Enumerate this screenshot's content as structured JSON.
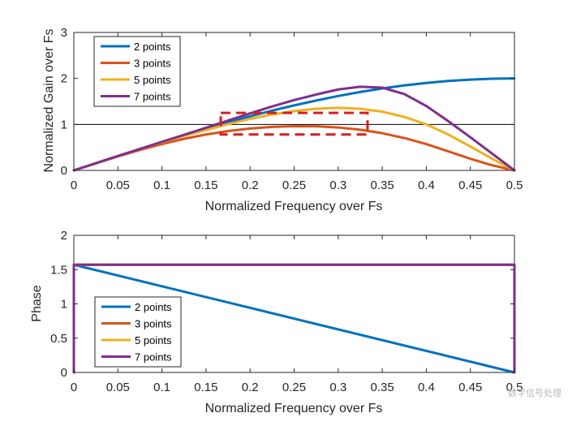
{
  "chart_data": [
    {
      "type": "line",
      "xlabel": "Normalized Frequency over Fs",
      "ylabel": "Normalized Gain over Fs",
      "xlim": [
        0,
        0.5
      ],
      "ylim": [
        0,
        3
      ],
      "xticks": [
        "0",
        "0.05",
        "0.1",
        "0.15",
        "0.2",
        "0.25",
        "0.3",
        "0.35",
        "0.4",
        "0.45",
        "0.5"
      ],
      "yticks": [
        "0",
        "1",
        "2",
        "3"
      ],
      "grid": false,
      "legend_position": "top-left",
      "legend": [
        "2 points",
        "3 points",
        "5 points",
        "7 points"
      ],
      "x": [
        0,
        0.025,
        0.05,
        0.075,
        0.1,
        0.125,
        0.15,
        0.175,
        0.2,
        0.225,
        0.25,
        0.275,
        0.3,
        0.325,
        0.35,
        0.375,
        0.4,
        0.425,
        0.45,
        0.475,
        0.5
      ],
      "series": [
        {
          "name": "2 points",
          "color": "#0072BD",
          "values": [
            0,
            0.156,
            0.313,
            0.465,
            0.618,
            0.765,
            0.908,
            1.045,
            1.176,
            1.3,
            1.414,
            1.52,
            1.618,
            1.705,
            1.782,
            1.848,
            1.902,
            1.945,
            1.975,
            1.994,
            2.0
          ]
        },
        {
          "name": "3 points",
          "color": "#D95319",
          "values": [
            0,
            0.154,
            0.304,
            0.445,
            0.573,
            0.686,
            0.781,
            0.856,
            0.911,
            0.946,
            0.962,
            0.959,
            0.934,
            0.885,
            0.809,
            0.704,
            0.572,
            0.414,
            0.252,
            0.11,
            0
          ]
        },
        {
          "name": "5 points",
          "color": "#EDB120",
          "values": [
            0,
            0.156,
            0.312,
            0.466,
            0.614,
            0.752,
            0.878,
            1.005,
            1.12,
            1.215,
            1.29,
            1.342,
            1.362,
            1.342,
            1.277,
            1.163,
            1.0,
            0.78,
            0.52,
            0.25,
            0
          ]
        },
        {
          "name": "7 points",
          "color": "#7E2F8E",
          "values": [
            0,
            0.156,
            0.313,
            0.467,
            0.622,
            0.774,
            0.928,
            1.085,
            1.24,
            1.39,
            1.53,
            1.65,
            1.76,
            1.82,
            1.8,
            1.66,
            1.4,
            1.07,
            0.72,
            0.36,
            0
          ]
        }
      ],
      "annotations": {
        "reference_line": {
          "y": 1.0,
          "color": "#000000"
        },
        "dashed_box": {
          "x0": 0.1667,
          "x1": 0.3333,
          "y0": 0.78,
          "y1": 1.25,
          "color": "#D42020"
        }
      }
    },
    {
      "type": "line",
      "xlabel": "Normalized Frequency over Fs",
      "ylabel": "Phase",
      "xlim": [
        0,
        0.5
      ],
      "ylim": [
        0,
        2
      ],
      "xticks": [
        "0",
        "0.05",
        "0.1",
        "0.15",
        "0.2",
        "0.25",
        "0.3",
        "0.35",
        "0.4",
        "0.45",
        "0.5"
      ],
      "yticks": [
        "0",
        "0.5",
        "1",
        "1.5",
        "2"
      ],
      "grid": false,
      "legend_position": "bottom-left",
      "legend": [
        "2 points",
        "3 points",
        "5 points",
        "7 points"
      ],
      "series": [
        {
          "name": "2 points",
          "color": "#0072BD",
          "x": [
            0,
            0.5
          ],
          "values": [
            1.5708,
            0
          ]
        },
        {
          "name": "3 points",
          "color": "#D95319",
          "x": [
            0,
            0,
            0.5,
            0.5
          ],
          "values": [
            0,
            1.5708,
            1.5708,
            0
          ]
        },
        {
          "name": "5 points",
          "color": "#EDB120",
          "x": [
            0,
            0,
            0.5,
            0.5
          ],
          "values": [
            0,
            1.5708,
            1.5708,
            0
          ]
        },
        {
          "name": "7 points",
          "color": "#7E2F8E",
          "x": [
            0,
            0,
            0.5,
            0.5
          ],
          "values": [
            0,
            1.5708,
            1.5708,
            0
          ]
        }
      ]
    }
  ],
  "watermark": "数字信号处理"
}
